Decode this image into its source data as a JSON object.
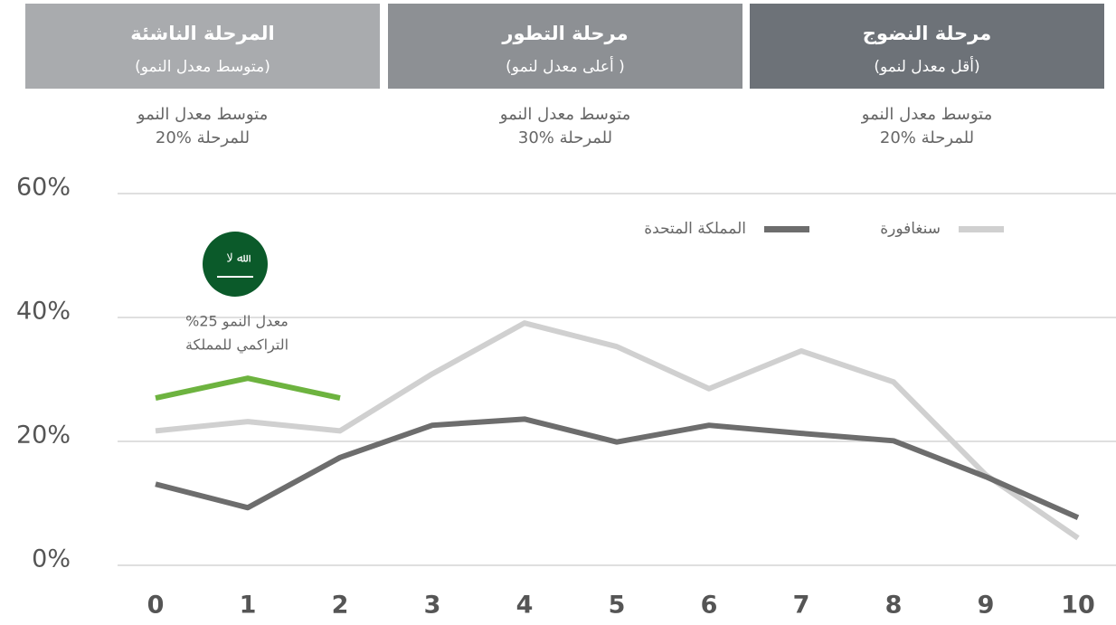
{
  "stages": [
    {
      "title": "المرحلة الناشئة",
      "subtitle": "(متوسط معدل النمو)",
      "note": [
        "متوسط معدل النمو",
        "للمرحلة %20"
      ],
      "color": "#a9abae"
    },
    {
      "title": "مرحلة التطور",
      "subtitle": "( أعلى معدل لنمو)",
      "note": [
        "متوسط معدل النمو",
        "للمرحلة %30"
      ],
      "color": "#8d9094"
    },
    {
      "title": "مرحلة النضوج",
      "subtitle": "(أقل معدل لنمو)",
      "note": [
        "متوسط معدل النمو",
        "للمرحلة %20"
      ],
      "color": "#6d7278"
    }
  ],
  "chart_data": {
    "type": "line",
    "annotation": [
      "%25 معدل النمو",
      "التراكمي للمملكة"
    ],
    "x": [
      0,
      1,
      2,
      3,
      4,
      5,
      6,
      7,
      8,
      9,
      10
    ],
    "xlim": [
      0,
      10
    ],
    "xticks": [
      0,
      1,
      2,
      3,
      4,
      5,
      6,
      7,
      8,
      9,
      10
    ],
    "ylim": [
      0,
      60
    ],
    "yticks": [
      {
        "value": 0,
        "label": "0%"
      },
      {
        "value": 20,
        "label": "20%"
      },
      {
        "value": 40,
        "label": "40%"
      },
      {
        "value": 60,
        "label": "60%"
      }
    ],
    "grid": true,
    "series": [
      {
        "name": "سنغافورة",
        "color": "#d0d0d0",
        "values": [
          21.7,
          23.2,
          21.7,
          30.9,
          39.1,
          35.3,
          28.5,
          34.6,
          29.6,
          14.6,
          4.4
        ]
      },
      {
        "name": "المملكة المتحدة",
        "color": "#6d6d6d",
        "values": [
          13.1,
          9.3,
          17.4,
          22.6,
          23.6,
          19.9,
          22.6,
          21.3,
          20.1,
          14.3,
          7.7
        ]
      },
      {
        "color": "#6db33f",
        "values": [
          27.0,
          30.2,
          27.0,
          null,
          null,
          null,
          null,
          null,
          null,
          null,
          null
        ]
      }
    ]
  }
}
